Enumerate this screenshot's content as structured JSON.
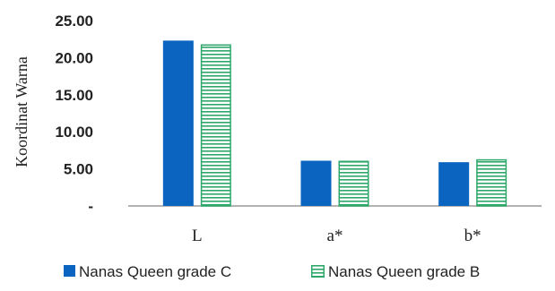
{
  "chart_data": {
    "type": "bar",
    "title": "",
    "xlabel": "",
    "ylabel": "Koordinat Warna",
    "categories": [
      "L",
      "a*",
      "b*"
    ],
    "ylim": [
      0,
      25
    ],
    "yticks": [
      0,
      5,
      10,
      15,
      20,
      25
    ],
    "ytick_labels": [
      "-",
      "5.00",
      "10.00",
      "15.00",
      "20.00",
      "25.00"
    ],
    "grid": false,
    "legend_position": "bottom",
    "series": [
      {
        "name": "Nanas Queen grade C",
        "values": [
          22.3,
          6.1,
          5.9
        ],
        "color": "#0a64c0",
        "pattern": "solid"
      },
      {
        "name": "Nanas Queen grade B",
        "values": [
          21.8,
          6.1,
          6.3
        ],
        "color": "#2ea86a",
        "pattern": "horizontal-stripes"
      }
    ]
  }
}
